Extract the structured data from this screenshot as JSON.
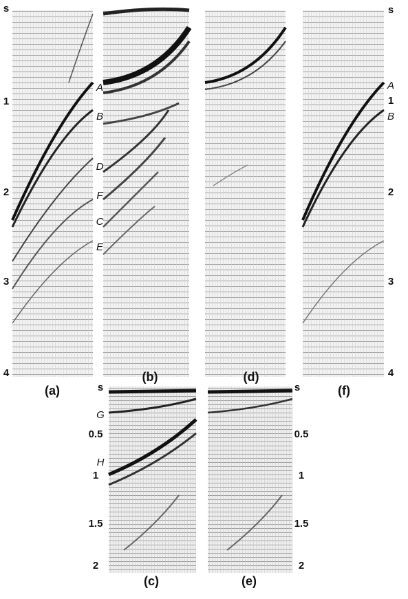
{
  "panels": [
    {
      "label": "(a)"
    },
    {
      "label": "(b)"
    },
    {
      "label": "(d)"
    },
    {
      "label": "(f)"
    },
    {
      "label": "(c)"
    },
    {
      "label": "(e)"
    }
  ],
  "axes": {
    "top_left": {
      "unit": "s",
      "ticks": [
        "1",
        "2",
        "3",
        "4"
      ]
    },
    "top_right": {
      "unit": "s",
      "ticks": [
        "1",
        "2",
        "3",
        "4"
      ]
    },
    "bottom_left": {
      "unit": "s",
      "ticks": [
        "0.5",
        "1",
        "1.5",
        "2"
      ]
    },
    "bottom_right": {
      "unit": "s",
      "ticks": [
        "0.5",
        "1",
        "1.5",
        "2"
      ]
    }
  },
  "event_labels": {
    "panel_b": [
      "A",
      "B",
      "D",
      "F",
      "C",
      "E"
    ],
    "panel_f": [
      "A",
      "B"
    ],
    "panel_c": [
      "G",
      "H"
    ]
  }
}
